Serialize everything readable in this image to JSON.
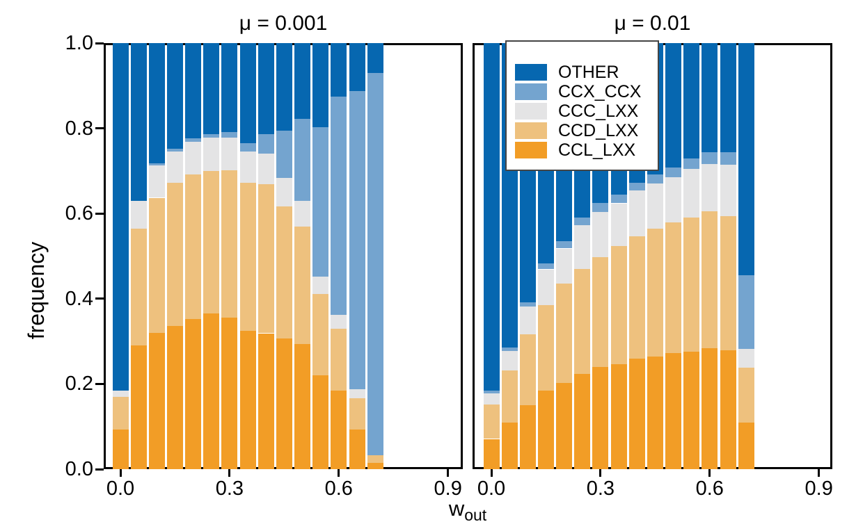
{
  "figure": {
    "y_axis_label": "frequency",
    "x_axis_label_main": "w",
    "x_axis_label_sub": "out"
  },
  "legend": {
    "entries": [
      {
        "key": "OTHER",
        "label": "OTHER"
      },
      {
        "key": "CCX_CCX",
        "label": "CCX_CCX"
      },
      {
        "key": "CCC_LXX",
        "label": "CCC_LXX"
      },
      {
        "key": "CCD_LXX",
        "label": "CCD_LXX"
      },
      {
        "key": "CCL_LXX",
        "label": "CCL_LXX"
      }
    ]
  },
  "chart_data": {
    "type": "bar",
    "stacked": true,
    "ylabel": "frequency",
    "xlabel": "w_out",
    "ylim": [
      0,
      1
    ],
    "xlim": [
      -0.045,
      0.945
    ],
    "x": [
      0.0,
      0.05,
      0.1,
      0.15,
      0.2,
      0.25,
      0.3,
      0.35,
      0.4,
      0.45,
      0.5,
      0.55,
      0.6,
      0.65,
      0.7
    ],
    "x_tick_values": [
      0.0,
      0.3,
      0.6,
      0.9
    ],
    "x_tick_labels": [
      "0.0",
      "0.3",
      "0.6",
      "0.9"
    ],
    "y_tick_values": [
      0.0,
      0.2,
      0.4,
      0.6,
      0.8,
      1.0
    ],
    "y_tick_labels": [
      "0.0",
      "0.2",
      "0.4",
      "0.6",
      "0.8",
      "1.0"
    ],
    "grid": false,
    "legend_position": "top-left-of-right-panel",
    "series_order_bottom_to_top": [
      "CCL_LXX",
      "CCD_LXX",
      "CCC_LXX",
      "CCX_CCX",
      "OTHER"
    ],
    "colors": {
      "OTHER": "#0667b0",
      "CCX_CCX": "#74a4cf",
      "CCC_LXX": "#e4e4e5",
      "CCD_LXX": "#eec17e",
      "CCL_LXX": "#f29d26"
    },
    "panels": [
      {
        "title": "μ = 0.001",
        "series": {
          "CCL_LXX": [
            0.093,
            0.291,
            0.32,
            0.336,
            0.353,
            0.366,
            0.355,
            0.324,
            0.319,
            0.307,
            0.293,
            0.221,
            0.185,
            0.093,
            0.014
          ],
          "CCD_LXX": [
            0.076,
            0.273,
            0.317,
            0.336,
            0.339,
            0.334,
            0.346,
            0.348,
            0.35,
            0.309,
            0.276,
            0.19,
            0.145,
            0.073,
            0.019
          ],
          "CCC_LXX": [
            0.016,
            0.065,
            0.076,
            0.074,
            0.076,
            0.078,
            0.078,
            0.073,
            0.072,
            0.068,
            0.06,
            0.041,
            0.032,
            0.022,
            0.0
          ],
          "CCX_CCX": [
            0.0,
            0.0,
            0.005,
            0.006,
            0.008,
            0.009,
            0.013,
            0.02,
            0.046,
            0.111,
            0.193,
            0.351,
            0.512,
            0.7,
            0.897
          ],
          "OTHER": [
            0.815,
            0.371,
            0.282,
            0.248,
            0.224,
            0.213,
            0.208,
            0.235,
            0.213,
            0.205,
            0.178,
            0.197,
            0.126,
            0.112,
            0.07
          ]
        }
      },
      {
        "title": "μ = 0.01",
        "series": {
          "CCL_LXX": [
            0.071,
            0.109,
            0.15,
            0.184,
            0.202,
            0.224,
            0.24,
            0.247,
            0.259,
            0.265,
            0.272,
            0.276,
            0.284,
            0.279,
            0.11
          ],
          "CCD_LXX": [
            0.08,
            0.123,
            0.166,
            0.201,
            0.233,
            0.246,
            0.258,
            0.277,
            0.288,
            0.299,
            0.308,
            0.315,
            0.321,
            0.315,
            0.128
          ],
          "CCC_LXX": [
            0.027,
            0.046,
            0.065,
            0.084,
            0.083,
            0.102,
            0.105,
            0.1,
            0.107,
            0.106,
            0.106,
            0.114,
            0.111,
            0.12,
            0.044
          ],
          "CCX_CCX": [
            0.007,
            0.008,
            0.011,
            0.014,
            0.017,
            0.018,
            0.022,
            0.021,
            0.019,
            0.022,
            0.022,
            0.025,
            0.028,
            0.03,
            0.174
          ],
          "OTHER": [
            0.815,
            0.714,
            0.608,
            0.517,
            0.465,
            0.41,
            0.375,
            0.355,
            0.327,
            0.308,
            0.292,
            0.27,
            0.256,
            0.256,
            0.544
          ]
        }
      }
    ]
  }
}
